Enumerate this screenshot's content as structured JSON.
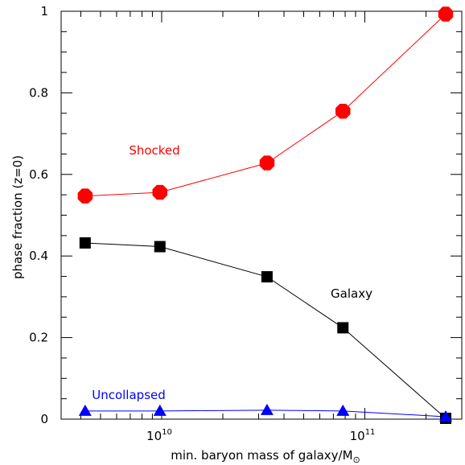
{
  "chart_data": {
    "type": "line",
    "title": "",
    "xlabel": "min. baryon mass of galaxy/M",
    "xlabel_symbol": "⊙",
    "ylabel": "phase fraction (z=0)",
    "x_scale": "log",
    "xlim": [
      3200000000.0,
      300000000000.0
    ],
    "ylim": [
      0,
      1
    ],
    "grid": false,
    "x_tick_labels": [
      {
        "value": 10000000000.0,
        "base": "10",
        "exp": "10"
      },
      {
        "value": 100000000000.0,
        "base": "10",
        "exp": "11"
      }
    ],
    "y_ticks": [
      0,
      0.2,
      0.4,
      0.6,
      0.8,
      1
    ],
    "y_tick_labels": [
      "0",
      "0.2",
      "0.4",
      "0.6",
      "0.8",
      "1"
    ],
    "x": [
      4200000000.0,
      9800000000.0,
      33000000000.0,
      78000000000.0,
      250000000000.0
    ],
    "series": [
      {
        "label": "Shocked",
        "color": "#ff0000",
        "marker": "octagon",
        "values": [
          0.547,
          0.556,
          0.628,
          0.755,
          0.993
        ]
      },
      {
        "label": "Galaxy",
        "color": "#000000",
        "marker": "square",
        "values": [
          0.432,
          0.423,
          0.349,
          0.224,
          0.002
        ]
      },
      {
        "label": "Uncollapsed",
        "color": "#0000ff",
        "marker": "triangle",
        "values": [
          0.02,
          0.02,
          0.022,
          0.02,
          0.006
        ]
      }
    ]
  }
}
